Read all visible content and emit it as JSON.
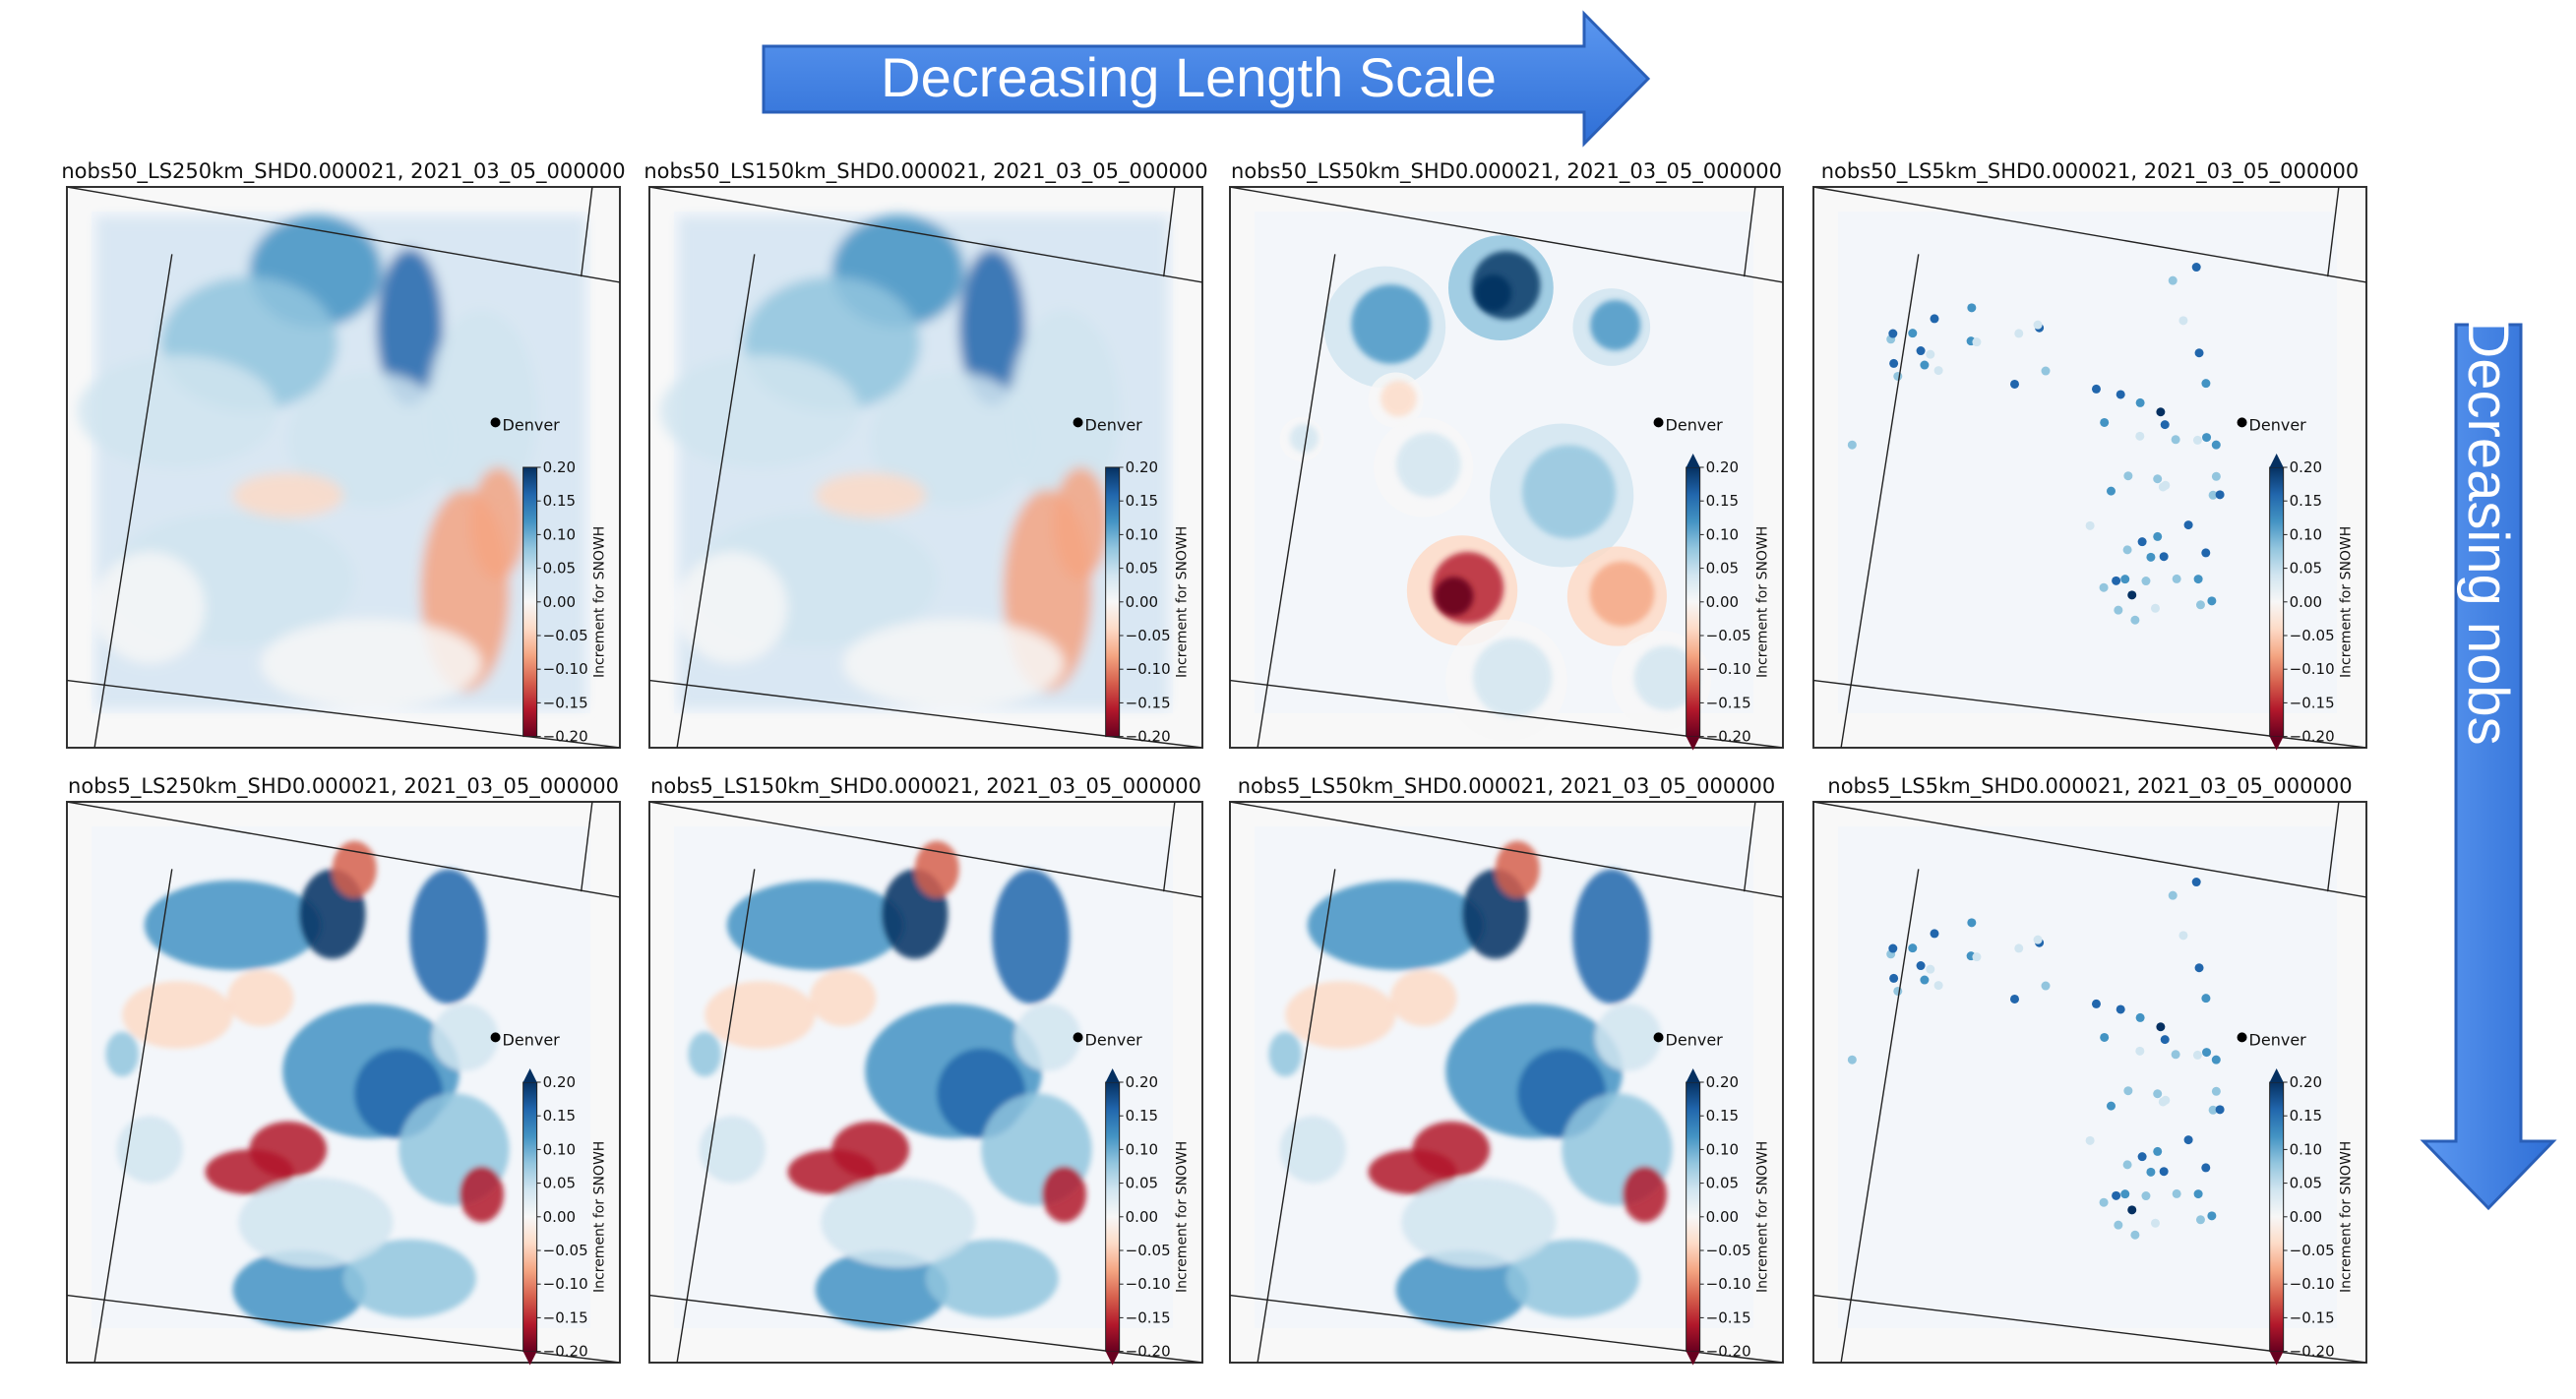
{
  "header_arrow": {
    "label": "Decreasing Length Scale",
    "direction": "right",
    "color": "#3d7fe6"
  },
  "side_arrow": {
    "label": "Decreasing nobs",
    "direction": "down",
    "color": "#3d7fe6"
  },
  "colorbar": {
    "label": "Increment for SNOWH",
    "vmin": -0.2,
    "vmax": 0.2,
    "ticks": [
      "0.20",
      "0.15",
      "0.10",
      "0.05",
      "0.00",
      "−0.05",
      "−0.10",
      "−0.15",
      "−0.20"
    ],
    "colormap": "RdBu",
    "colors": [
      "#67001f",
      "#b2182b",
      "#d6604d",
      "#f4a582",
      "#fddbc7",
      "#f7f7f7",
      "#d1e5f0",
      "#92c5de",
      "#4393c3",
      "#2166ac",
      "#053061"
    ]
  },
  "city": {
    "name": "Denver",
    "marker": "dot"
  },
  "rows": [
    {
      "nobs": "50",
      "panels": [
        {
          "title": "nobs50_LS250km_SHD0.000021, 2021_03_05_000000",
          "pattern": "smooth",
          "extend": "neither"
        },
        {
          "title": "nobs50_LS150km_SHD0.000021, 2021_03_05_000000",
          "pattern": "smooth",
          "extend": "neither"
        },
        {
          "title": "nobs50_LS50km_SHD0.000021, 2021_03_05_000000",
          "pattern": "circles",
          "extend": "both"
        },
        {
          "title": "nobs50_LS5km_SHD0.000021, 2021_03_05_000000",
          "pattern": "points",
          "extend": "both"
        }
      ]
    },
    {
      "nobs": "5",
      "panels": [
        {
          "title": "nobs5_LS250km_SHD0.000021, 2021_03_05_000000",
          "pattern": "patchy",
          "extend": "both"
        },
        {
          "title": "nobs5_LS150km_SHD0.000021, 2021_03_05_000000",
          "pattern": "patchy",
          "extend": "both"
        },
        {
          "title": "nobs5_LS50km_SHD0.000021, 2021_03_05_000000",
          "pattern": "patchy",
          "extend": "both"
        },
        {
          "title": "nobs5_LS5km_SHD0.000021, 2021_03_05_000000",
          "pattern": "points",
          "extend": "both"
        }
      ]
    }
  ]
}
